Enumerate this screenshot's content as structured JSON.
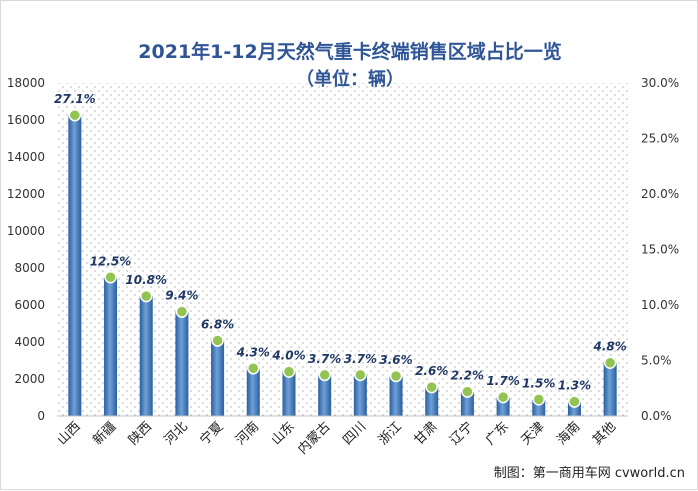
{
  "chart_data": {
    "type": "bar",
    "title": "2021年1-12月天然气重卡终端销售区域占比一览",
    "subtitle": "（单位：辆）",
    "categories": [
      "山西",
      "新疆",
      "陕西",
      "河北",
      "宁夏",
      "河南",
      "山东",
      "内蒙古",
      "四川",
      "浙江",
      "甘肃",
      "辽宁",
      "广东",
      "天津",
      "海南",
      "其他"
    ],
    "series": [
      {
        "type": "bar",
        "axis": "left",
        "values": [
          16200,
          7480,
          6480,
          5620,
          4100,
          2560,
          2400,
          2220,
          2180,
          2140,
          1560,
          1300,
          1000,
          880,
          760,
          2870
        ]
      },
      {
        "type": "point",
        "axis": "right",
        "values": [
          27.1,
          12.5,
          10.8,
          9.4,
          6.8,
          4.3,
          4.0,
          3.7,
          3.7,
          3.6,
          2.6,
          2.2,
          1.7,
          1.5,
          1.3,
          4.8
        ],
        "labels": [
          "27.1%",
          "12.5%",
          "10.8%",
          "9.4%",
          "6.8%",
          "4.3%",
          "4.0%",
          "3.7%",
          "3.7%",
          "3.6%",
          "2.6%",
          "2.2%",
          "1.7%",
          "1.5%",
          "1.3%",
          "4.8%"
        ]
      }
    ],
    "ylim_left": [
      0,
      18000
    ],
    "yticks_left": [
      "0",
      "2000",
      "4000",
      "6000",
      "8000",
      "10000",
      "12000",
      "14000",
      "16000",
      "18000"
    ],
    "ylim_right": [
      0,
      30
    ],
    "yticks_right": [
      "0.0%",
      "5.0%",
      "10.0%",
      "15.0%",
      "20.0%",
      "25.0%",
      "30.0%"
    ],
    "grid": "dotted background",
    "legend": "none",
    "colors": {
      "bar_dark": "#2a5f9e",
      "bar_light": "#6fa0d8",
      "point_fill": "#92c353",
      "point_stroke": "#ffffff",
      "label": "#1f3864",
      "title": "#2f5597"
    }
  },
  "credit": "制图：第一商用车网 cvworld.cn"
}
